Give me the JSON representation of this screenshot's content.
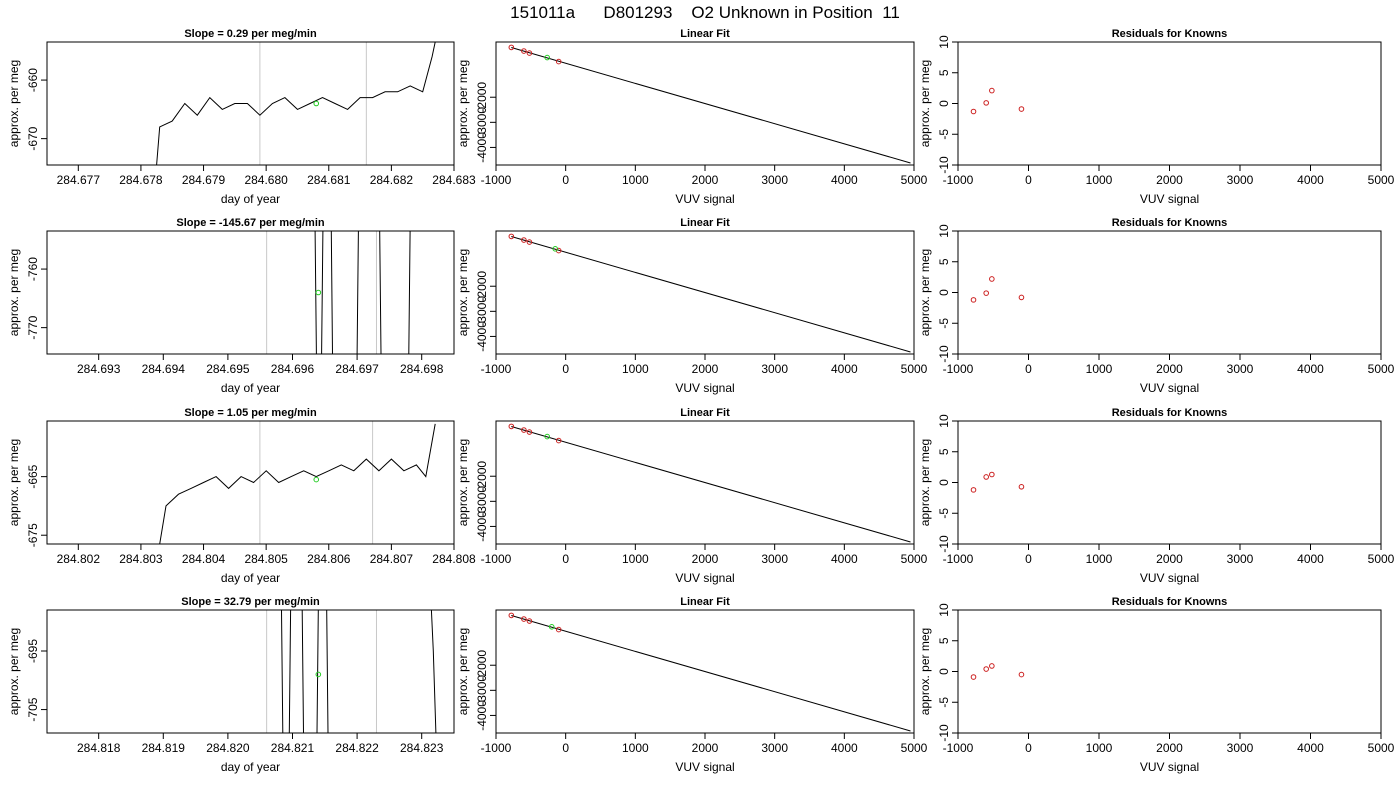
{
  "figure_title": "151011a      D801293    O2 Unknown in Position  11",
  "chart_data": [
    {
      "type": "line",
      "row": 0,
      "col": 0,
      "title": "Slope =  0.29  per meg/min",
      "xlabel": "day of year",
      "ylabel": "approx. per meg",
      "xlim": [
        284.6765,
        284.683
      ],
      "ylim": [
        -674.5,
        -653.5
      ],
      "xticks": [
        "284.677",
        "284.678",
        "284.679",
        "284.680",
        "284.681",
        "284.682",
        "284.683"
      ],
      "xtick_values": [
        284.677,
        284.678,
        284.679,
        284.68,
        284.681,
        284.682,
        284.683
      ],
      "yticks": [
        "-660",
        "-670"
      ],
      "ytick_values": [
        -660,
        -670
      ],
      "vlines": [
        284.6799,
        284.6816
      ],
      "series": [
        {
          "x": [
            284.67825,
            284.6783,
            284.6785,
            284.6787,
            284.6789,
            284.6791,
            284.6793,
            284.6795,
            284.6797,
            284.6799,
            284.6801,
            284.6803,
            284.6805,
            284.6807,
            284.6809,
            284.6811,
            284.6813,
            284.6815,
            284.6817,
            284.6819,
            284.6821,
            284.6823,
            284.6825,
            284.68265,
            284.6827
          ],
          "y": [
            -674.5,
            -668,
            -667,
            -664,
            -666,
            -663,
            -665,
            -664,
            -664,
            -666,
            -664,
            -663,
            -665,
            -664,
            -663,
            -664,
            -665,
            -663,
            -663,
            -662,
            -662,
            -661,
            -662,
            -656,
            -653.5
          ]
        }
      ],
      "green_point": {
        "x": 284.6808,
        "y": -664
      },
      "residuals": null
    },
    {
      "type": "scatter",
      "row": 0,
      "col": 1,
      "title": "Linear Fit",
      "xlabel": "VUV signal",
      "ylabel": "approx. per meg",
      "xlim": [
        -1000,
        5000
      ],
      "ylim": [
        -4700,
        200
      ],
      "xticks": [
        "-1000",
        "0",
        "1000",
        "2000",
        "3000",
        "4000",
        "5000"
      ],
      "xtick_values": [
        -1000,
        0,
        1000,
        2000,
        3000,
        4000,
        5000
      ],
      "yticks": [
        "-2000",
        "-3000",
        "-4000"
      ],
      "ytick_values": [
        -2000,
        -3000,
        -4000
      ],
      "fit_line": {
        "x": [
          -780,
          4950
        ],
        "y": [
          -20,
          -4620
        ]
      },
      "known_points": {
        "x": [
          -780,
          -600,
          -520,
          -100
        ],
        "y": [
          -15,
          -160,
          -240,
          -580
        ]
      },
      "green_point": {
        "x": -265,
        "y": -420
      }
    },
    {
      "type": "scatter",
      "row": 0,
      "col": 2,
      "title": "Residuals for Knowns",
      "xlabel": "VUV signal",
      "ylabel": "approx. per meg",
      "xlim": [
        -1000,
        5000
      ],
      "ylim": [
        -10,
        10
      ],
      "xticks": [
        "-1000",
        "0",
        "1000",
        "2000",
        "3000",
        "4000",
        "5000"
      ],
      "xtick_values": [
        -1000,
        0,
        1000,
        2000,
        3000,
        4000,
        5000
      ],
      "yticks": [
        "-10",
        "-5",
        "0",
        "5",
        "10"
      ],
      "ytick_values": [
        -10,
        -5,
        0,
        5,
        10
      ],
      "points": {
        "x": [
          -780,
          -600,
          -520,
          -100
        ],
        "y": [
          -1.3,
          0.1,
          2.1,
          -0.9
        ]
      }
    },
    {
      "type": "line",
      "row": 1,
      "col": 0,
      "title": "Slope =  -145.67  per meg/min",
      "xlabel": "day of year",
      "ylabel": "approx. per meg",
      "xlim": [
        284.6922,
        284.6985
      ],
      "ylim": [
        -774.5,
        -753.5
      ],
      "xticks": [
        "284.693",
        "284.694",
        "284.695",
        "284.696",
        "284.697",
        "284.698"
      ],
      "xtick_values": [
        284.693,
        284.694,
        284.695,
        284.696,
        284.697,
        284.698
      ],
      "yticks": [
        "-760",
        "-770"
      ],
      "ytick_values": [
        -760,
        -770
      ],
      "vlines": [
        284.6956,
        284.6973
      ],
      "series": [
        {
          "x": [
            284.69635,
            284.69637,
            284.69645,
            284.69647,
            284.6966,
            284.69662,
            284.697,
            284.69702,
            284.69735,
            284.69737,
            284.6978,
            284.69782
          ],
          "y": [
            -753.5,
            -774.5,
            -774.5,
            -753.5,
            -753.5,
            -774.5,
            -774.5,
            -753.5,
            -753.5,
            -774.5,
            -774.5,
            -753.5
          ]
        }
      ],
      "green_point": {
        "x": 284.6964,
        "y": -764
      },
      "residuals": null
    },
    {
      "type": "scatter",
      "row": 1,
      "col": 1,
      "title": "Linear Fit",
      "xlabel": "VUV signal",
      "ylabel": "approx. per meg",
      "xlim": [
        -1000,
        5000
      ],
      "ylim": [
        -4700,
        200
      ],
      "xticks": [
        "-1000",
        "0",
        "1000",
        "2000",
        "3000",
        "4000",
        "5000"
      ],
      "xtick_values": [
        -1000,
        0,
        1000,
        2000,
        3000,
        4000,
        5000
      ],
      "yticks": [
        "-2000",
        "-3000",
        "-4000"
      ],
      "ytick_values": [
        -2000,
        -3000,
        -4000
      ],
      "fit_line": {
        "x": [
          -780,
          4950
        ],
        "y": [
          -20,
          -4620
        ]
      },
      "known_points": {
        "x": [
          -780,
          -600,
          -520,
          -100
        ],
        "y": [
          -15,
          -160,
          -240,
          -580
        ]
      },
      "green_point": {
        "x": -150,
        "y": -510
      }
    },
    {
      "type": "scatter",
      "row": 1,
      "col": 2,
      "title": "Residuals for Knowns",
      "xlabel": "VUV signal",
      "ylabel": "approx. per meg",
      "xlim": [
        -1000,
        5000
      ],
      "ylim": [
        -10,
        10
      ],
      "xticks": [
        "-1000",
        "0",
        "1000",
        "2000",
        "3000",
        "4000",
        "5000"
      ],
      "xtick_values": [
        -1000,
        0,
        1000,
        2000,
        3000,
        4000,
        5000
      ],
      "yticks": [
        "-10",
        "-5",
        "0",
        "5",
        "10"
      ],
      "ytick_values": [
        -10,
        -5,
        0,
        5,
        10
      ],
      "points": {
        "x": [
          -780,
          -600,
          -520,
          -100
        ],
        "y": [
          -1.2,
          -0.1,
          2.2,
          -0.8
        ]
      }
    },
    {
      "type": "line",
      "row": 2,
      "col": 0,
      "title": "Slope =  1.05  per meg/min",
      "xlabel": "day of year",
      "ylabel": "approx. per meg",
      "xlim": [
        284.8015,
        284.808
      ],
      "ylim": [
        -676.5,
        -655.5
      ],
      "xticks": [
        "284.802",
        "284.803",
        "284.804",
        "284.805",
        "284.806",
        "284.807",
        "284.808"
      ],
      "xtick_values": [
        284.802,
        284.803,
        284.804,
        284.805,
        284.806,
        284.807,
        284.808
      ],
      "yticks": [
        "-665",
        "-675"
      ],
      "ytick_values": [
        -665,
        -675
      ],
      "vlines": [
        284.8049,
        284.8067
      ],
      "series": [
        {
          "x": [
            284.8033,
            284.8034,
            284.8036,
            284.8038,
            284.804,
            284.8042,
            284.8044,
            284.8046,
            284.8048,
            284.805,
            284.8052,
            284.8054,
            284.8056,
            284.8058,
            284.806,
            284.8062,
            284.8064,
            284.8066,
            284.8068,
            284.807,
            284.8072,
            284.8074,
            284.80755,
            284.8077
          ],
          "y": [
            -676.5,
            -670,
            -668,
            -667,
            -666,
            -665,
            -667,
            -665,
            -666,
            -664,
            -666,
            -665,
            -664,
            -665,
            -664,
            -663,
            -664,
            -662,
            -664,
            -662,
            -664,
            -663,
            -665,
            -656
          ]
        }
      ],
      "green_point": {
        "x": 284.8058,
        "y": -665.5
      },
      "residuals": null
    },
    {
      "type": "scatter",
      "row": 2,
      "col": 1,
      "title": "Linear Fit",
      "xlabel": "VUV signal",
      "ylabel": "approx. per meg",
      "xlim": [
        -1000,
        5000
      ],
      "ylim": [
        -4700,
        200
      ],
      "xticks": [
        "-1000",
        "0",
        "1000",
        "2000",
        "3000",
        "4000",
        "5000"
      ],
      "xtick_values": [
        -1000,
        0,
        1000,
        2000,
        3000,
        4000,
        5000
      ],
      "yticks": [
        "-2000",
        "-3000",
        "-4000"
      ],
      "ytick_values": [
        -2000,
        -3000,
        -4000
      ],
      "fit_line": {
        "x": [
          -780,
          4950
        ],
        "y": [
          -20,
          -4620
        ]
      },
      "known_points": {
        "x": [
          -780,
          -600,
          -520,
          -100
        ],
        "y": [
          -15,
          -160,
          -240,
          -580
        ]
      },
      "green_point": {
        "x": -265,
        "y": -420
      }
    },
    {
      "type": "scatter",
      "row": 2,
      "col": 2,
      "title": "Residuals for Knowns",
      "xlabel": "VUV signal",
      "ylabel": "approx. per meg",
      "xlim": [
        -1000,
        5000
      ],
      "ylim": [
        -10,
        10
      ],
      "xticks": [
        "-1000",
        "0",
        "1000",
        "2000",
        "3000",
        "4000",
        "5000"
      ],
      "xtick_values": [
        -1000,
        0,
        1000,
        2000,
        3000,
        4000,
        5000
      ],
      "yticks": [
        "-10",
        "-5",
        "0",
        "5",
        "10"
      ],
      "ytick_values": [
        -10,
        -5,
        0,
        5,
        10
      ],
      "points": {
        "x": [
          -780,
          -600,
          -520,
          -100
        ],
        "y": [
          -1.2,
          0.9,
          1.3,
          -0.7
        ]
      }
    },
    {
      "type": "line",
      "row": 3,
      "col": 0,
      "title": "Slope =  32.79  per meg/min",
      "xlabel": "day of year",
      "ylabel": "approx. per meg",
      "xlim": [
        284.8172,
        284.8235
      ],
      "ylim": [
        -709,
        -688
      ],
      "xticks": [
        "284.818",
        "284.819",
        "284.820",
        "284.821",
        "284.822",
        "284.823"
      ],
      "xtick_values": [
        284.818,
        284.819,
        284.82,
        284.821,
        284.822,
        284.823
      ],
      "yticks": [
        "-695",
        "-705"
      ],
      "ytick_values": [
        -695,
        -705
      ],
      "vlines": [
        284.8206,
        284.8223
      ],
      "series": [
        {
          "x": [
            284.82083,
            284.82085,
            284.82095,
            284.82097,
            284.82115,
            284.82117,
            284.82138,
            284.8214,
            284.82153,
            284.82155
          ],
          "y": [
            -688,
            -709,
            -709,
            -688,
            -688,
            -709,
            -709,
            -688,
            -688,
            -709
          ]
        },
        {
          "x": [
            284.82315,
            284.82318,
            284.82322
          ],
          "y": [
            -688,
            -695,
            -709
          ]
        }
      ],
      "green_point": {
        "x": 284.8214,
        "y": -699
      },
      "residuals": null
    },
    {
      "type": "scatter",
      "row": 3,
      "col": 1,
      "title": "Linear Fit",
      "xlabel": "VUV signal",
      "ylabel": "approx. per meg",
      "xlim": [
        -1000,
        5000
      ],
      "ylim": [
        -4700,
        200
      ],
      "xticks": [
        "-1000",
        "0",
        "1000",
        "2000",
        "3000",
        "4000",
        "5000"
      ],
      "xtick_values": [
        -1000,
        0,
        1000,
        2000,
        3000,
        4000,
        5000
      ],
      "yticks": [
        "-2000",
        "-3000",
        "-4000"
      ],
      "ytick_values": [
        -2000,
        -3000,
        -4000
      ],
      "fit_line": {
        "x": [
          -780,
          4950
        ],
        "y": [
          -20,
          -4620
        ]
      },
      "known_points": {
        "x": [
          -780,
          -600,
          -520,
          -100
        ],
        "y": [
          -15,
          -160,
          -240,
          -580
        ]
      },
      "green_point": {
        "x": -200,
        "y": -470
      }
    },
    {
      "type": "scatter",
      "row": 3,
      "col": 2,
      "title": "Residuals for Knowns",
      "xlabel": "VUV signal",
      "ylabel": "approx. per meg",
      "xlim": [
        -1000,
        5000
      ],
      "ylim": [
        -10,
        10
      ],
      "xticks": [
        "-1000",
        "0",
        "1000",
        "2000",
        "3000",
        "4000",
        "5000"
      ],
      "xtick_values": [
        -1000,
        0,
        1000,
        2000,
        3000,
        4000,
        5000
      ],
      "yticks": [
        "-10",
        "-5",
        "0",
        "5",
        "10"
      ],
      "ytick_values": [
        -10,
        -5,
        0,
        5,
        10
      ],
      "points": {
        "x": [
          -780,
          -600,
          -520,
          -100
        ],
        "y": [
          -0.9,
          0.4,
          0.9,
          -0.5
        ]
      }
    }
  ]
}
